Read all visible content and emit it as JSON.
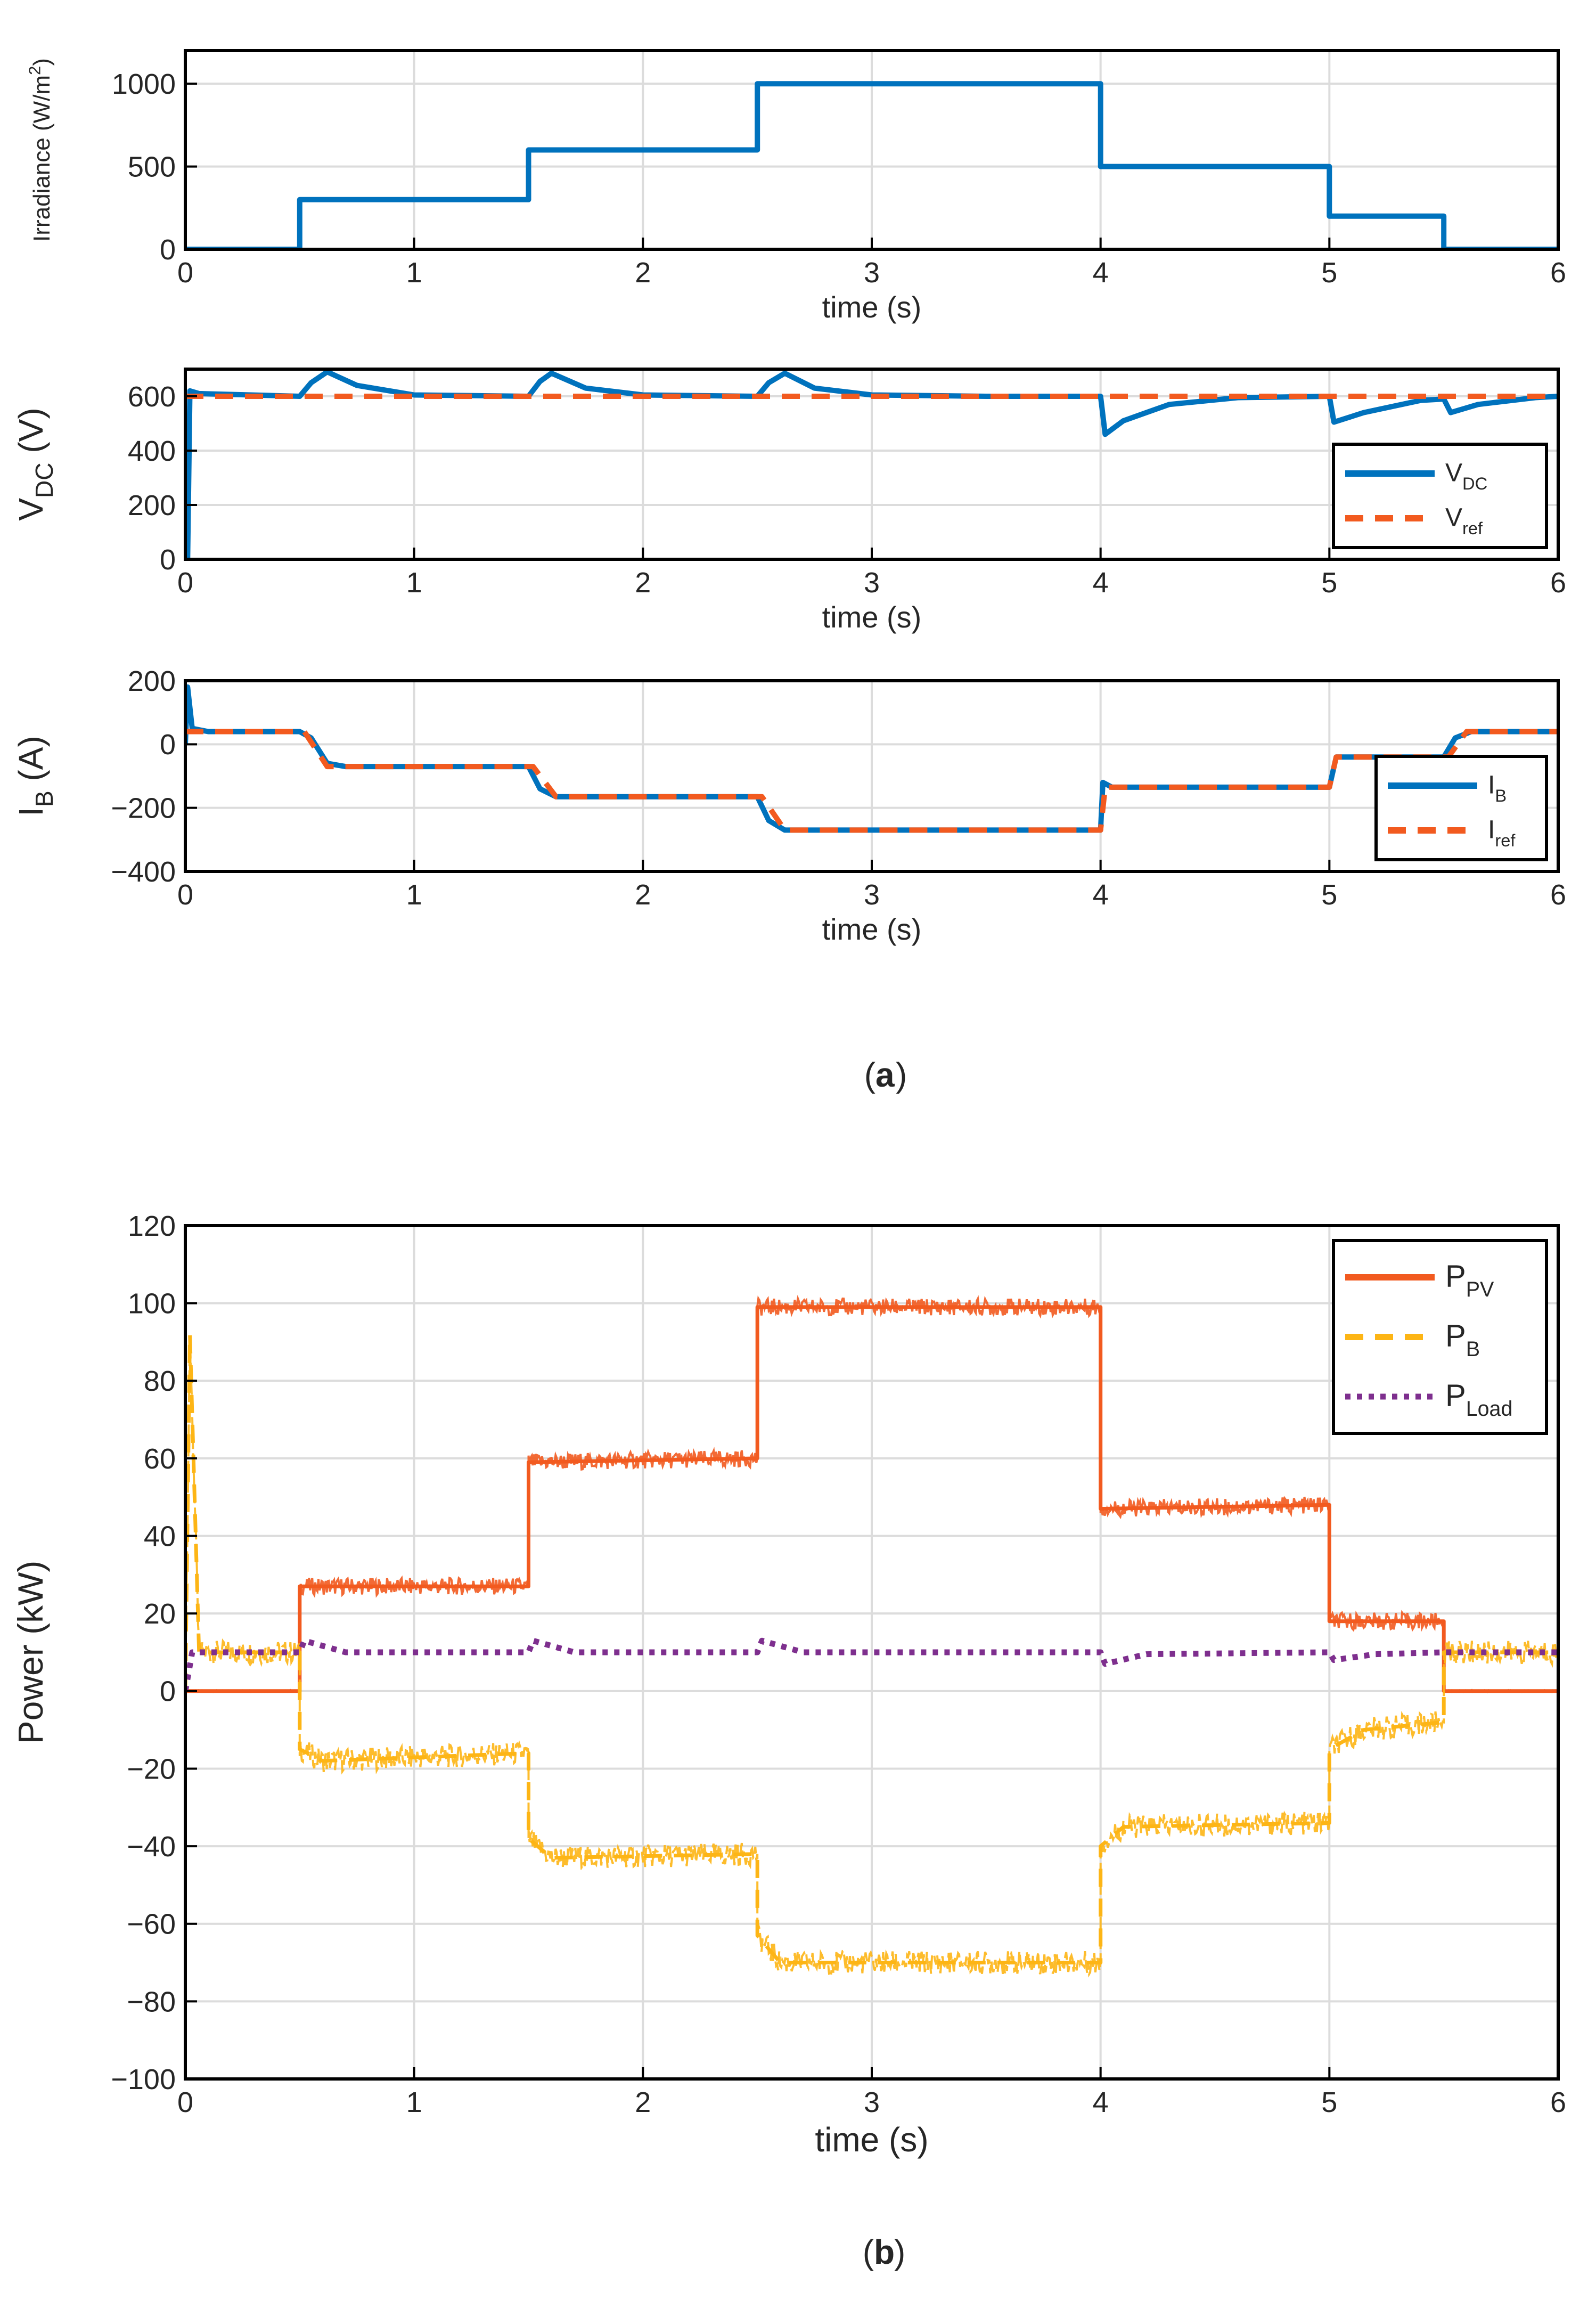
{
  "captions": {
    "a_open": "(",
    "a_letter": "a",
    "a_close": ")",
    "b_open": "(",
    "b_letter": "b",
    "b_close": ")"
  },
  "colors": {
    "blue": "#0072BD",
    "orange": "#F25A1F",
    "yellow": "#FDB515",
    "purple": "#7E2F8E",
    "grid": "#dcdcdc",
    "axis": "#000000"
  },
  "chart_data": [
    {
      "id": "irradiance",
      "type": "line",
      "xlabel": "time (s)",
      "ylabel_main": "Irradiance (W/m",
      "ylabel_sup": "2",
      "ylabel_end": ")",
      "xlim": [
        0,
        6
      ],
      "ylim": [
        0,
        1200
      ],
      "xticks": [
        0,
        1,
        2,
        3,
        4,
        5,
        6
      ],
      "yticks": [
        0,
        500,
        1000
      ],
      "series": [
        {
          "name": "Irradiance",
          "color_key": "blue",
          "style": "solid",
          "points": [
            [
              0,
              0
            ],
            [
              0.5,
              0
            ],
            [
              0.5,
              300
            ],
            [
              1.5,
              300
            ],
            [
              1.5,
              600
            ],
            [
              2.5,
              600
            ],
            [
              2.5,
              1000
            ],
            [
              4,
              1000
            ],
            [
              4,
              500
            ],
            [
              5,
              500
            ],
            [
              5,
              200
            ],
            [
              5.5,
              200
            ],
            [
              5.5,
              0
            ],
            [
              6,
              0
            ]
          ]
        }
      ],
      "legend": null
    },
    {
      "id": "vdc",
      "type": "line",
      "xlabel": "time (s)",
      "ylabel_main": "V",
      "ylabel_sub": "DC",
      "ylabel_end": " (V)",
      "xlim": [
        0,
        6
      ],
      "ylim": [
        0,
        700
      ],
      "xticks": [
        0,
        1,
        2,
        3,
        4,
        5,
        6
      ],
      "yticks": [
        0,
        200,
        400,
        600
      ],
      "series": [
        {
          "name": "V",
          "sub": "DC",
          "color_key": "blue",
          "style": "solid",
          "points": [
            [
              0,
              0
            ],
            [
              0.01,
              0
            ],
            [
              0.02,
              620
            ],
            [
              0.06,
              610
            ],
            [
              0.5,
              600
            ],
            [
              0.55,
              650
            ],
            [
              0.62,
              690
            ],
            [
              0.75,
              640
            ],
            [
              1,
              605
            ],
            [
              1.5,
              600
            ],
            [
              1.55,
              655
            ],
            [
              1.6,
              685
            ],
            [
              1.75,
              630
            ],
            [
              2,
              605
            ],
            [
              2.5,
              600
            ],
            [
              2.55,
              650
            ],
            [
              2.62,
              685
            ],
            [
              2.75,
              630
            ],
            [
              3,
              605
            ],
            [
              3.5,
              600
            ],
            [
              4,
              600
            ],
            [
              4.02,
              460
            ],
            [
              4.1,
              510
            ],
            [
              4.3,
              570
            ],
            [
              4.6,
              595
            ],
            [
              5,
              600
            ],
            [
              5.02,
              505
            ],
            [
              5.15,
              540
            ],
            [
              5.4,
              585
            ],
            [
              5.5,
              590
            ],
            [
              5.53,
              540
            ],
            [
              5.65,
              570
            ],
            [
              5.9,
              595
            ],
            [
              6,
              600
            ]
          ]
        },
        {
          "name": "V",
          "sub": "ref",
          "color_key": "orange",
          "style": "dash",
          "points": [
            [
              0,
              600
            ],
            [
              6,
              600
            ]
          ]
        }
      ],
      "legend": "bottom-right"
    },
    {
      "id": "ib",
      "type": "line",
      "xlabel": "time (s)",
      "ylabel_main": "I",
      "ylabel_sub": "B",
      "ylabel_end": " (A)",
      "xlim": [
        0,
        6
      ],
      "ylim": [
        -400,
        200
      ],
      "xticks": [
        0,
        1,
        2,
        3,
        4,
        5,
        6
      ],
      "yticks": [
        -400,
        -200,
        0,
        200
      ],
      "series": [
        {
          "name": "I",
          "sub": "B",
          "color_key": "blue",
          "style": "solid",
          "points": [
            [
              0,
              0
            ],
            [
              0.01,
              180
            ],
            [
              0.03,
              50
            ],
            [
              0.1,
              40
            ],
            [
              0.5,
              40
            ],
            [
              0.55,
              20
            ],
            [
              0.62,
              -60
            ],
            [
              0.7,
              -70
            ],
            [
              1.5,
              -70
            ],
            [
              1.55,
              -140
            ],
            [
              1.62,
              -165
            ],
            [
              2.5,
              -165
            ],
            [
              2.55,
              -240
            ],
            [
              2.62,
              -270
            ],
            [
              4,
              -270
            ],
            [
              4.01,
              -120
            ],
            [
              4.05,
              -135
            ],
            [
              5,
              -135
            ],
            [
              5.03,
              -40
            ],
            [
              5.5,
              -40
            ],
            [
              5.55,
              20
            ],
            [
              5.62,
              40
            ],
            [
              6,
              40
            ]
          ]
        },
        {
          "name": "I",
          "sub": "ref",
          "color_key": "orange",
          "style": "dash",
          "points": [
            [
              0,
              40
            ],
            [
              0.52,
              40
            ],
            [
              0.62,
              -70
            ],
            [
              1.52,
              -70
            ],
            [
              1.62,
              -165
            ],
            [
              2.52,
              -165
            ],
            [
              2.62,
              -270
            ],
            [
              4,
              -270
            ],
            [
              4.02,
              -135
            ],
            [
              5,
              -135
            ],
            [
              5.03,
              -40
            ],
            [
              5.52,
              -40
            ],
            [
              5.6,
              40
            ],
            [
              6,
              40
            ]
          ]
        }
      ],
      "legend": "bottom-right"
    },
    {
      "id": "power",
      "type": "line",
      "xlabel": "time (s)",
      "ylabel_main": "Power (kW)",
      "xlim": [
        0,
        6
      ],
      "ylim": [
        -100,
        120
      ],
      "xticks": [
        0,
        1,
        2,
        3,
        4,
        5,
        6
      ],
      "yticks": [
        -100,
        -80,
        -60,
        -40,
        -20,
        0,
        20,
        40,
        60,
        80,
        100,
        120
      ],
      "series": [
        {
          "name": "P",
          "sub": "PV",
          "color_key": "orange",
          "style": "solid",
          "band": true,
          "points": [
            [
              0,
              0
            ],
            [
              0.5,
              0
            ],
            [
              0.5,
              27
            ],
            [
              1.5,
              27
            ],
            [
              1.5,
              59
            ],
            [
              2.5,
              60
            ],
            [
              2.5,
              99
            ],
            [
              4,
              99
            ],
            [
              4,
              47
            ],
            [
              5,
              48
            ],
            [
              5,
              18
            ],
            [
              5.5,
              18
            ],
            [
              5.5,
              0
            ],
            [
              6,
              0
            ]
          ]
        },
        {
          "name": "P",
          "sub": "B",
          "color_key": "yellow",
          "style": "dash",
          "band": true,
          "points": [
            [
              0,
              0
            ],
            [
              0.02,
              92
            ],
            [
              0.06,
              10
            ],
            [
              0.5,
              10
            ],
            [
              0.5,
              -15
            ],
            [
              0.6,
              -18
            ],
            [
              1.5,
              -16
            ],
            [
              1.5,
              -38
            ],
            [
              1.6,
              -43
            ],
            [
              2.5,
              -42
            ],
            [
              2.5,
              -63
            ],
            [
              2.6,
              -70
            ],
            [
              4,
              -70
            ],
            [
              4,
              -40
            ],
            [
              4.1,
              -35
            ],
            [
              5,
              -34
            ],
            [
              5,
              -15
            ],
            [
              5.15,
              -10
            ],
            [
              5.5,
              -8
            ],
            [
              5.5,
              10
            ],
            [
              6,
              10
            ]
          ]
        },
        {
          "name": "P",
          "sub": "Load",
          "color_key": "purple",
          "style": "dot",
          "band": false,
          "points": [
            [
              0,
              0
            ],
            [
              0.03,
              10
            ],
            [
              0.5,
              10
            ],
            [
              0.52,
              13
            ],
            [
              0.7,
              10
            ],
            [
              1.5,
              10
            ],
            [
              1.52,
              13
            ],
            [
              1.7,
              10
            ],
            [
              2.5,
              10
            ],
            [
              2.52,
              13
            ],
            [
              2.7,
              10
            ],
            [
              4,
              10
            ],
            [
              4.02,
              7
            ],
            [
              4.2,
              9.5
            ],
            [
              5,
              10
            ],
            [
              5.02,
              8
            ],
            [
              5.2,
              9.5
            ],
            [
              5.5,
              10
            ],
            [
              6,
              10
            ]
          ]
        }
      ],
      "legend": "top-right"
    }
  ]
}
